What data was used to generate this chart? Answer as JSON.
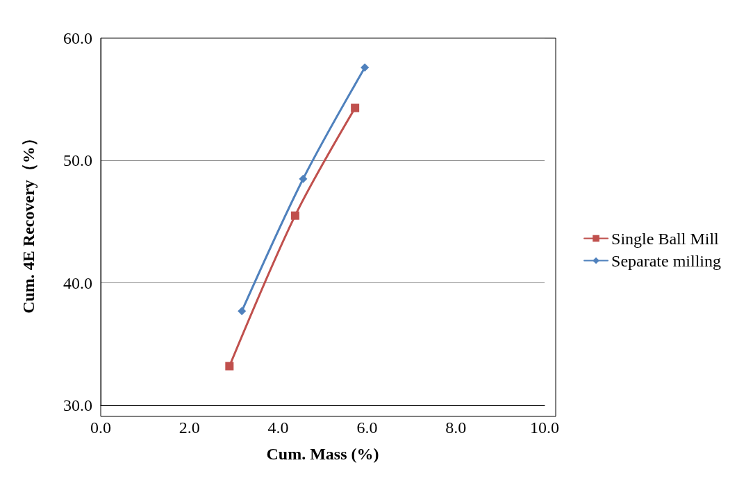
{
  "chart_data": {
    "type": "line",
    "xlabel": "Cum. Mass (%)",
    "ylabel": "Cum. 4E Recovery（%）",
    "xlim": [
      0,
      10
    ],
    "xticks": [
      {
        "value": 0,
        "label": "0.0"
      },
      {
        "value": 2,
        "label": "2.0"
      },
      {
        "value": 4,
        "label": "4.0"
      },
      {
        "value": 6,
        "label": "6.0"
      },
      {
        "value": 8,
        "label": "8.0"
      },
      {
        "value": 10,
        "label": "10.0"
      }
    ],
    "ylim": [
      30,
      60
    ],
    "yticks": [
      {
        "value": 30,
        "label": "30.0"
      },
      {
        "value": 40,
        "label": "40.0"
      },
      {
        "value": 50,
        "label": "50.0"
      },
      {
        "value": 60,
        "label": "60.0"
      }
    ],
    "grid": "y",
    "legend": "right",
    "line_style": "solid",
    "series": [
      {
        "name": "Single Ball Mill",
        "color": "#c0504d",
        "marker": "square",
        "x": [
          2.9,
          4.38,
          5.73
        ],
        "values": [
          33.2,
          45.5,
          54.3
        ]
      },
      {
        "name": "Separate milling",
        "color": "#4f81bd",
        "marker": "diamond",
        "x": [
          3.18,
          4.56,
          5.95
        ],
        "values": [
          37.7,
          48.5,
          57.6
        ]
      }
    ]
  }
}
